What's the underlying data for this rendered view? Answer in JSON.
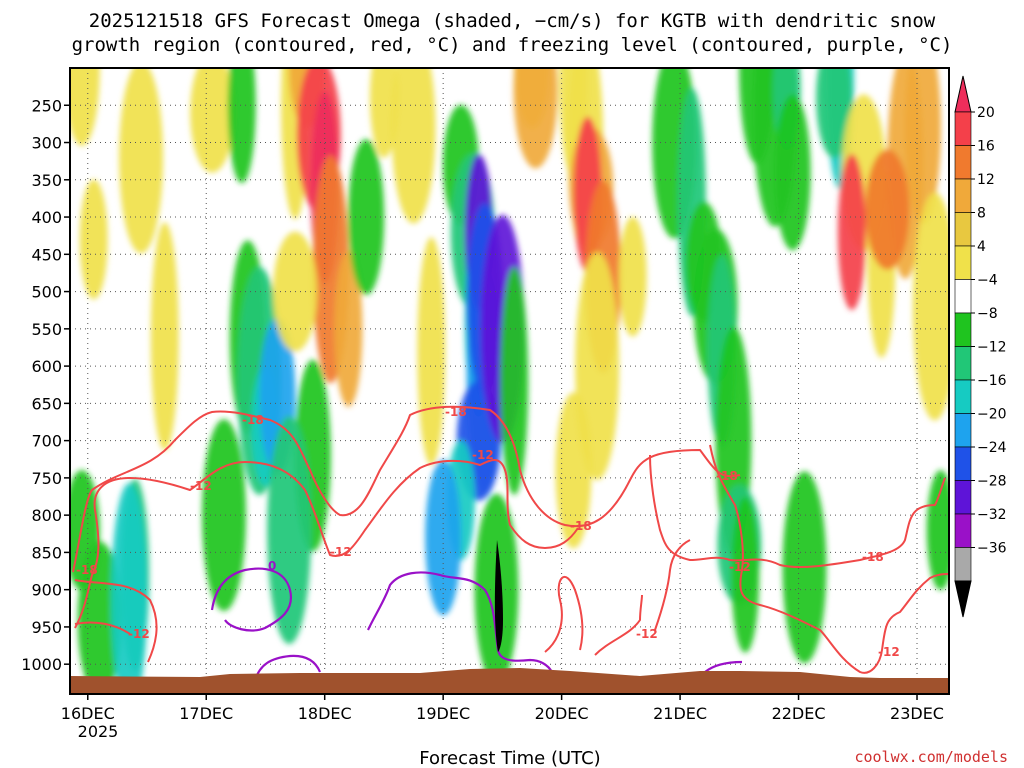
{
  "chart_data": {
    "type": "heatmap",
    "title_line1": "2025121518 GFS Forecast Omega (shaded, −cm/s) for KGTB with dendritic snow",
    "title_line2": "growth region (contoured, red, °C) and freezing level (contoured, purple, °C)",
    "xlabel": "Forecast Time (UTC)",
    "x_ticks": [
      "16DEC",
      "17DEC",
      "18DEC",
      "19DEC",
      "20DEC",
      "21DEC",
      "22DEC",
      "23DEC"
    ],
    "x_year": "2025",
    "x_range": [
      -0.15,
      7.27
    ],
    "y_ticks": [
      "250",
      "300",
      "350",
      "400",
      "450",
      "500",
      "550",
      "600",
      "650",
      "700",
      "750",
      "800",
      "850",
      "900",
      "950",
      "1000"
    ],
    "y_range_hpa": [
      200,
      1040
    ],
    "colorbar_labels": [
      "20",
      "16",
      "12",
      "8",
      "4",
      "−4",
      "−8",
      "−12",
      "−16",
      "−20",
      "−24",
      "−28",
      "−32",
      "−36"
    ],
    "colorbar_colors": [
      "#ee2d5b",
      "#f4404a",
      "#f07a2e",
      "#f0a93a",
      "#e8c840",
      "#f0e14a",
      "#ffffff",
      "#1fc41f",
      "#21c777",
      "#16cbc2",
      "#1ea3ee",
      "#1f52e8",
      "#5e14d8",
      "#9a11c8",
      "#a9a9a9",
      "#000000"
    ],
    "contour_labels": [
      "-18",
      "-12",
      "-18",
      "-12",
      "-12",
      "-18",
      "-12",
      "-18",
      "-12",
      "-18",
      "-12",
      "-18",
      "-12",
      "0"
    ],
    "shading_blobs": [
      {
        "t": 0.05,
        "p": 430,
        "c": "#f0e14a"
      },
      {
        "t": -0.05,
        "p": 200,
        "c": "#f0e14a"
      },
      {
        "t": 0.45,
        "p": 320,
        "c": "#f0e14a"
      },
      {
        "t": 0.65,
        "p": 560,
        "c": "#f0e14a"
      },
      {
        "t": -0.05,
        "p": 820,
        "c": "#1fc41f"
      },
      {
        "t": 0.1,
        "p": 940,
        "c": "#1fc41f"
      },
      {
        "t": 0.4,
        "p": 880,
        "c": "#21c777"
      },
      {
        "t": 0.35,
        "p": 910,
        "c": "#16cbc2"
      },
      {
        "t": 1.05,
        "p": 260,
        "c": "#f0e14a"
      },
      {
        "t": 1.3,
        "p": 250,
        "c": "#1fc41f"
      },
      {
        "t": 1.35,
        "p": 560,
        "c": "#1fc41f"
      },
      {
        "t": 1.45,
        "p": 620,
        "c": "#21c777"
      },
      {
        "t": 1.5,
        "p": 680,
        "c": "#16cbc2"
      },
      {
        "t": 1.6,
        "p": 640,
        "c": "#1ea3ee"
      },
      {
        "t": 1.15,
        "p": 800,
        "c": "#1fc41f"
      },
      {
        "t": 1.75,
        "p": 250,
        "c": "#f0e14a"
      },
      {
        "t": 1.85,
        "p": 200,
        "c": "#f0a93a"
      },
      {
        "t": 1.95,
        "p": 290,
        "c": "#f4404a"
      },
      {
        "t": 2.0,
        "p": 360,
        "c": "#ee2d5b"
      },
      {
        "t": 2.05,
        "p": 470,
        "c": "#f07a2e"
      },
      {
        "t": 1.75,
        "p": 500,
        "c": "#f0e14a"
      },
      {
        "t": 2.2,
        "p": 550,
        "c": "#f0a93a"
      },
      {
        "t": 1.9,
        "p": 720,
        "c": "#1fc41f"
      },
      {
        "t": 1.7,
        "p": 820,
        "c": "#21c777"
      },
      {
        "t": 2.5,
        "p": 240,
        "c": "#f0e14a"
      },
      {
        "t": 2.35,
        "p": 400,
        "c": "#1fc41f"
      },
      {
        "t": 2.75,
        "p": 280,
        "c": "#f0e14a"
      },
      {
        "t": 2.9,
        "p": 580,
        "c": "#f0e14a"
      },
      {
        "t": 3.15,
        "p": 330,
        "c": "#1fc41f"
      },
      {
        "t": 3.25,
        "p": 420,
        "c": "#21c777"
      },
      {
        "t": 3.3,
        "p": 540,
        "c": "#16cbc2"
      },
      {
        "t": 3.35,
        "p": 620,
        "c": "#1ea3ee"
      },
      {
        "t": 3.3,
        "p": 700,
        "c": "#1f52e8"
      },
      {
        "t": 3.3,
        "p": 420,
        "c": "#5e14d8"
      },
      {
        "t": 3.35,
        "p": 510,
        "c": "#1f52e8"
      },
      {
        "t": 3.5,
        "p": 550,
        "c": "#5e14d8"
      },
      {
        "t": 3.15,
        "p": 780,
        "c": "#16cbc2"
      },
      {
        "t": 3.0,
        "p": 830,
        "c": "#1ea3ee"
      },
      {
        "t": 3.45,
        "p": 900,
        "c": "#1fc41f"
      },
      {
        "t": 3.6,
        "p": 620,
        "c": "#1fc41f"
      },
      {
        "t": 3.75,
        "p": 200,
        "c": "#f0e14a"
      },
      {
        "t": 3.78,
        "p": 230,
        "c": "#f0a93a"
      },
      {
        "t": 4.1,
        "p": 220,
        "c": "#f0e14a"
      },
      {
        "t": 4.2,
        "p": 300,
        "c": "#f0e14a"
      },
      {
        "t": 4.25,
        "p": 360,
        "c": "#f0a93a"
      },
      {
        "t": 4.22,
        "p": 370,
        "c": "#f4404a"
      },
      {
        "t": 4.35,
        "p": 480,
        "c": "#f07a2e"
      },
      {
        "t": 4.3,
        "p": 600,
        "c": "#f0e14a"
      },
      {
        "t": 4.6,
        "p": 480,
        "c": "#f0e14a"
      },
      {
        "t": 4.1,
        "p": 740,
        "c": "#f0e14a"
      },
      {
        "t": 4.95,
        "p": 300,
        "c": "#1fc41f"
      },
      {
        "t": 5.1,
        "p": 380,
        "c": "#21c777"
      },
      {
        "t": 5.2,
        "p": 460,
        "c": "#1fc41f"
      },
      {
        "t": 5.3,
        "p": 520,
        "c": "#1fc41f"
      },
      {
        "t": 5.35,
        "p": 580,
        "c": "#21c777"
      },
      {
        "t": 5.45,
        "p": 700,
        "c": "#1fc41f"
      },
      {
        "t": 5.5,
        "p": 840,
        "c": "#21c777"
      },
      {
        "t": 5.55,
        "p": 880,
        "c": "#1fc41f"
      },
      {
        "t": 5.65,
        "p": 200,
        "c": "#1fc41f"
      },
      {
        "t": 5.8,
        "p": 260,
        "c": "#1fc41f"
      },
      {
        "t": 5.9,
        "p": 230,
        "c": "#21c777"
      },
      {
        "t": 5.95,
        "p": 340,
        "c": "#1fc41f"
      },
      {
        "t": 6.05,
        "p": 870,
        "c": "#1fc41f"
      },
      {
        "t": 6.35,
        "p": 210,
        "c": "#16cbc2"
      },
      {
        "t": 6.3,
        "p": 240,
        "c": "#21c777"
      },
      {
        "t": 6.55,
        "p": 340,
        "c": "#f0e14a"
      },
      {
        "t": 6.7,
        "p": 460,
        "c": "#f0e14a"
      },
      {
        "t": 6.9,
        "p": 330,
        "c": "#f0a93a"
      },
      {
        "t": 6.75,
        "p": 390,
        "c": "#f07a2e"
      },
      {
        "t": 6.45,
        "p": 420,
        "c": "#f4404a"
      },
      {
        "t": 7.05,
        "p": 280,
        "c": "#f0a93a"
      },
      {
        "t": 7.15,
        "p": 520,
        "c": "#f0e14a"
      },
      {
        "t": 7.2,
        "p": 820,
        "c": "#1fc41f"
      }
    ]
  }
}
